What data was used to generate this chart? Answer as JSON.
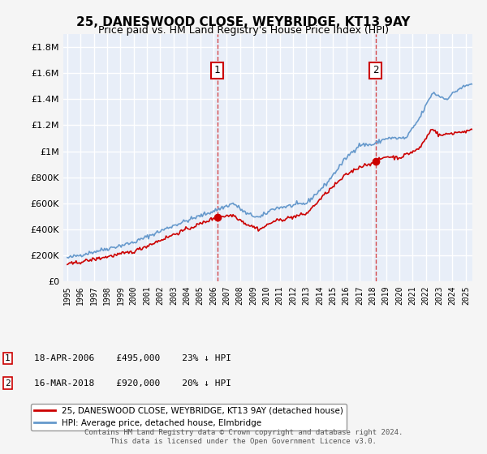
{
  "title": "25, DANESWOOD CLOSE, WEYBRIDGE, KT13 9AY",
  "subtitle": "Price paid vs. HM Land Registry's House Price Index (HPI)",
  "ylabel_ticks": [
    "£0",
    "£200K",
    "£400K",
    "£600K",
    "£800K",
    "£1M",
    "£1.2M",
    "£1.4M",
    "£1.6M",
    "£1.8M"
  ],
  "ytick_values": [
    0,
    200000,
    400000,
    600000,
    800000,
    1000000,
    1200000,
    1400000,
    1600000,
    1800000
  ],
  "ylim": [
    0,
    1900000
  ],
  "xlim_start": 1995.0,
  "xlim_end": 2025.5,
  "xtick_years": [
    1995,
    1996,
    1997,
    1998,
    1999,
    2000,
    2001,
    2002,
    2003,
    2004,
    2005,
    2006,
    2007,
    2008,
    2009,
    2010,
    2011,
    2012,
    2013,
    2014,
    2015,
    2016,
    2017,
    2018,
    2019,
    2020,
    2021,
    2022,
    2023,
    2024,
    2025
  ],
  "hpi_color": "#6699cc",
  "price_color": "#cc0000",
  "background_color": "#e8eef8",
  "grid_color": "#ffffff",
  "sale1_x": 2006.29,
  "sale1_y": 495000,
  "sale1_label": "1",
  "sale1_date": "18-APR-2006",
  "sale1_price": "£495,000",
  "sale1_hpi": "23% ↓ HPI",
  "sale2_x": 2018.21,
  "sale2_y": 920000,
  "sale2_label": "2",
  "sale2_date": "16-MAR-2018",
  "sale2_price": "£920,000",
  "sale2_hpi": "20% ↓ HPI",
  "legend_line1": "25, DANESWOOD CLOSE, WEYBRIDGE, KT13 9AY (detached house)",
  "legend_line2": "HPI: Average price, detached house, Elmbridge",
  "footer": "Contains HM Land Registry data © Crown copyright and database right 2024.\nThis data is licensed under the Open Government Licence v3.0."
}
